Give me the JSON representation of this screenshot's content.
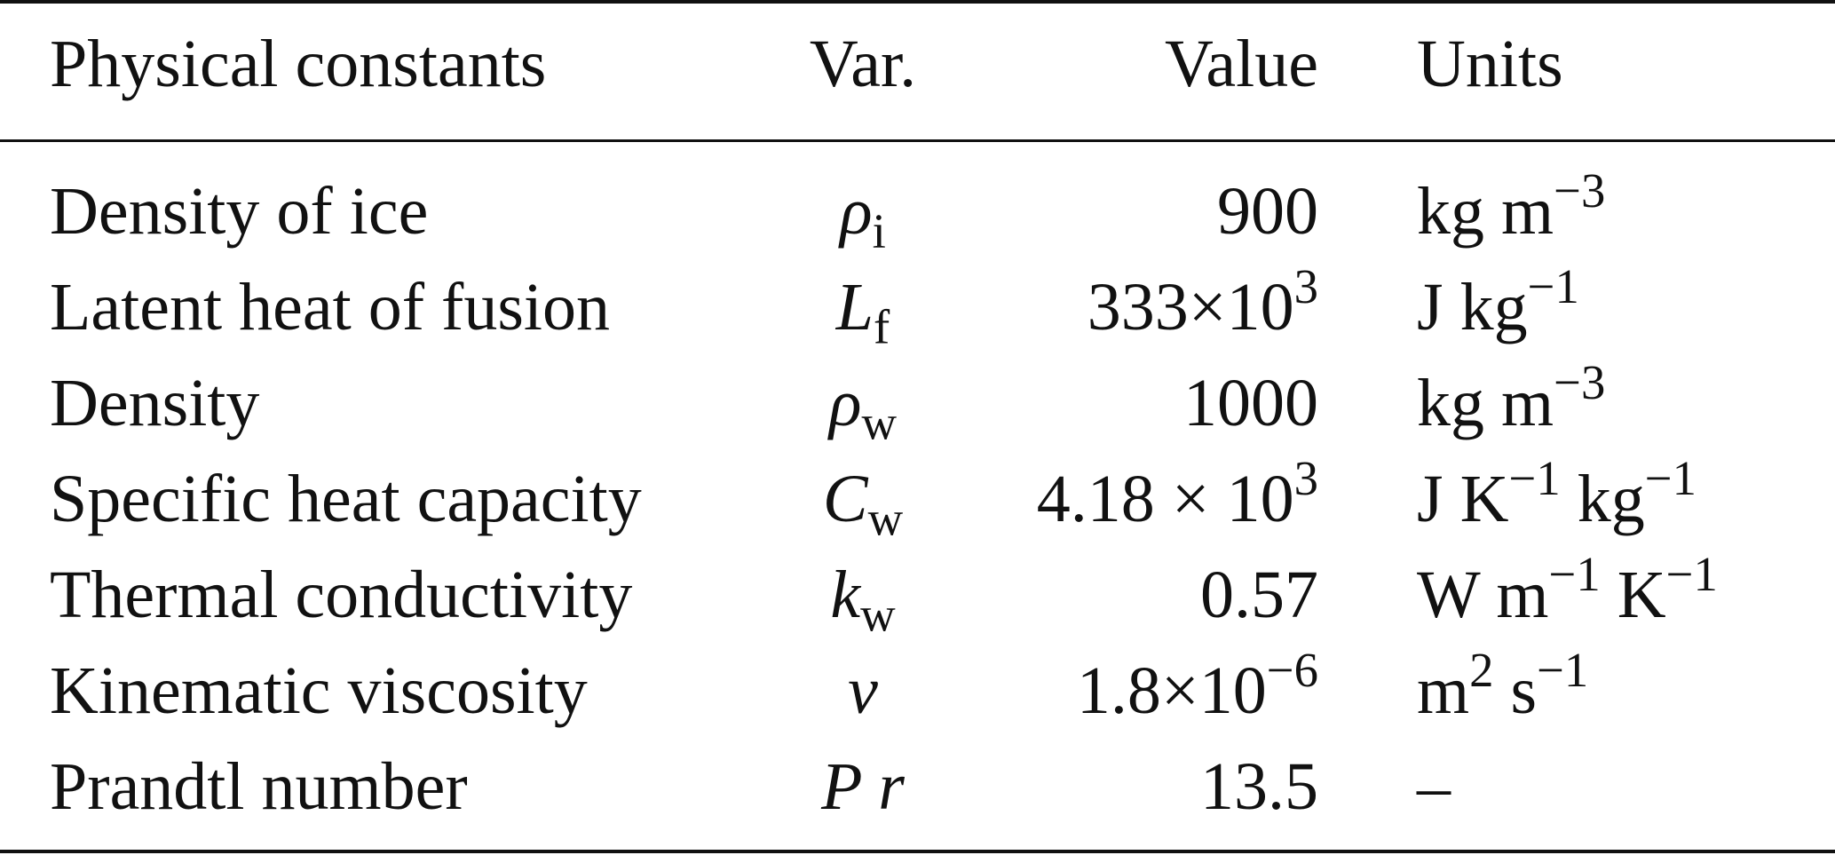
{
  "headers": {
    "name": "Physical constants",
    "var": "Var.",
    "value": "Value",
    "units": "Units"
  },
  "rows": [
    {
      "name": "Density of ice",
      "var": {
        "base": "ρ",
        "sub": "i"
      },
      "value": {
        "mantissa": "900",
        "sup": ""
      },
      "units": [
        {
          "base": "kg m",
          "sup": "−3"
        }
      ]
    },
    {
      "name": "Latent heat of fusion",
      "var": {
        "base": "L",
        "sub": "f"
      },
      "value": {
        "mantissa": "333×10",
        "sup": "3"
      },
      "units": [
        {
          "base": "J kg",
          "sup": "−1"
        }
      ]
    },
    {
      "name": "Density",
      "var": {
        "base": "ρ",
        "sub": "w"
      },
      "value": {
        "mantissa": "1000",
        "sup": ""
      },
      "units": [
        {
          "base": "kg m",
          "sup": "−3"
        }
      ]
    },
    {
      "name": "Specific heat capacity",
      "var": {
        "base": "C",
        "sub": "w"
      },
      "value": {
        "mantissa": "4.18 × 10",
        "sup": "3"
      },
      "units": [
        {
          "base": "J K",
          "sup": "−1"
        },
        {
          "base": " kg",
          "sup": "−1"
        }
      ]
    },
    {
      "name": "Thermal conductivity",
      "var": {
        "base": "k",
        "sub": "w"
      },
      "value": {
        "mantissa": "0.57",
        "sup": ""
      },
      "units": [
        {
          "base": "W m",
          "sup": "−1"
        },
        {
          "base": " K",
          "sup": "−1"
        }
      ]
    },
    {
      "name": "Kinematic viscosity",
      "var": {
        "base": "ν",
        "sub": ""
      },
      "value": {
        "mantissa": "1.8×10",
        "sup": "−6"
      },
      "units": [
        {
          "base": "m",
          "sup": "2"
        },
        {
          "base": " s",
          "sup": "−1"
        }
      ]
    },
    {
      "name": "Prandtl number",
      "var": {
        "base": "P r",
        "sub": ""
      },
      "value": {
        "mantissa": "13.5",
        "sup": ""
      },
      "units": [
        {
          "base": "–",
          "sup": ""
        }
      ]
    }
  ]
}
